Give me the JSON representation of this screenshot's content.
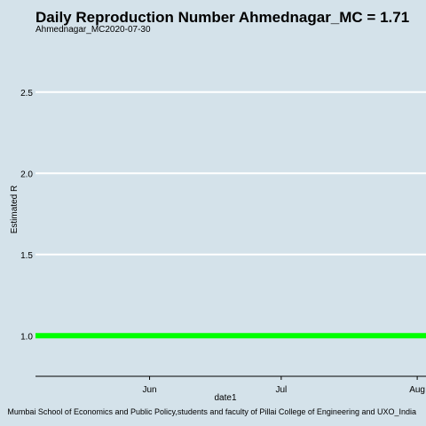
{
  "chart_data": {
    "type": "line",
    "title": "Daily Reproduction Number Ahmednagar_MC = 1.71",
    "subtitle": "Ahmednagar_MC2020-07-30",
    "xlabel": "date1",
    "ylabel": "Estimated R",
    "caption": "Mumbai School of Economics and Public Policy,students and faculty of Pillai College of Engineering and UXO_India",
    "x_type": "date",
    "xlim": [
      "2020-05-06",
      "2020-08-03"
    ],
    "ylim": [
      0.75,
      2.75
    ],
    "x_ticks": [
      {
        "value": "2020-06-01",
        "label": "Jun"
      },
      {
        "value": "2020-07-01",
        "label": "Jul"
      },
      {
        "value": "2020-08-01",
        "label": "Aug"
      }
    ],
    "y_ticks": [
      {
        "value": 1.0,
        "label": "1.0"
      },
      {
        "value": 1.5,
        "label": "1.5"
      },
      {
        "value": 2.0,
        "label": "2.0"
      },
      {
        "value": 2.5,
        "label": "2.5"
      }
    ],
    "grid": true,
    "series": [
      {
        "color": "#00ff00",
        "x": [
          "2020-05-06",
          "2020-08-03"
        ],
        "y": [
          1.0,
          1.0
        ]
      }
    ]
  }
}
